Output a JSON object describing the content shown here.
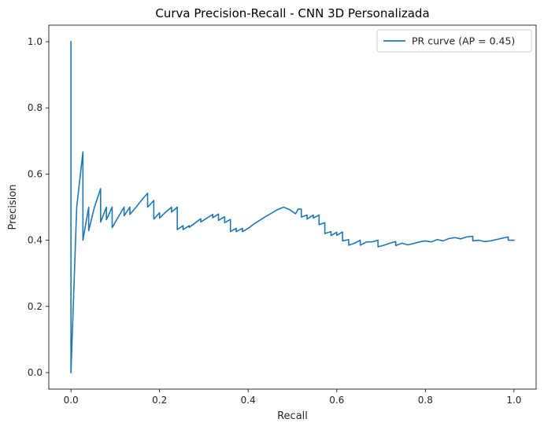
{
  "chart_data": {
    "type": "line",
    "title": "Curva Precision-Recall - CNN 3D Personalizada",
    "xlabel": "Recall",
    "ylabel": "Precision",
    "xlim": [
      -0.05,
      1.05
    ],
    "ylim": [
      -0.05,
      1.05
    ],
    "xticks": [
      0.0,
      0.2,
      0.4,
      0.6,
      0.8,
      1.0
    ],
    "xtick_labels": [
      "0.0",
      "0.2",
      "0.4",
      "0.6",
      "0.8",
      "1.0"
    ],
    "yticks": [
      0.0,
      0.2,
      0.4,
      0.6,
      0.8,
      1.0
    ],
    "ytick_labels": [
      "0.0",
      "0.2",
      "0.4",
      "0.6",
      "0.8",
      "1.0"
    ],
    "grid": false,
    "legend_position": "top-right",
    "series": [
      {
        "name": "PR curve (AP = 0.45)",
        "color": "#1f77b4",
        "x": [
          0.0,
          0.0,
          0.0,
          0.013,
          0.027,
          0.027,
          0.04,
          0.04,
          0.053,
          0.067,
          0.067,
          0.08,
          0.08,
          0.093,
          0.093,
          0.107,
          0.12,
          0.12,
          0.133,
          0.133,
          0.147,
          0.16,
          0.173,
          0.173,
          0.187,
          0.187,
          0.2,
          0.2,
          0.213,
          0.227,
          0.227,
          0.24,
          0.24,
          0.253,
          0.253,
          0.267,
          0.267,
          0.28,
          0.293,
          0.293,
          0.307,
          0.32,
          0.32,
          0.333,
          0.333,
          0.347,
          0.347,
          0.36,
          0.36,
          0.373,
          0.373,
          0.387,
          0.387,
          0.4,
          0.413,
          0.427,
          0.44,
          0.453,
          0.467,
          0.48,
          0.493,
          0.507,
          0.513,
          0.52,
          0.52,
          0.533,
          0.533,
          0.547,
          0.547,
          0.56,
          0.56,
          0.573,
          0.573,
          0.587,
          0.587,
          0.6,
          0.6,
          0.613,
          0.613,
          0.627,
          0.627,
          0.64,
          0.653,
          0.653,
          0.667,
          0.68,
          0.693,
          0.693,
          0.707,
          0.72,
          0.733,
          0.733,
          0.747,
          0.76,
          0.773,
          0.787,
          0.8,
          0.813,
          0.827,
          0.84,
          0.853,
          0.867,
          0.88,
          0.893,
          0.907,
          0.907,
          0.92,
          0.933,
          0.947,
          0.96,
          0.973,
          0.987,
          0.987,
          1.0
        ],
        "y": [
          1.0,
          0.0,
          0.0,
          0.5,
          0.667,
          0.4,
          0.5,
          0.429,
          0.5,
          0.556,
          0.455,
          0.5,
          0.462,
          0.5,
          0.438,
          0.471,
          0.5,
          0.474,
          0.5,
          0.478,
          0.5,
          0.522,
          0.542,
          0.5,
          0.52,
          0.464,
          0.483,
          0.467,
          0.484,
          0.5,
          0.485,
          0.5,
          0.432,
          0.444,
          0.432,
          0.444,
          0.439,
          0.452,
          0.465,
          0.455,
          0.467,
          0.478,
          0.468,
          0.479,
          0.46,
          0.471,
          0.453,
          0.463,
          0.426,
          0.436,
          0.426,
          0.436,
          0.426,
          0.436,
          0.449,
          0.461,
          0.472,
          0.482,
          0.493,
          0.5,
          0.493,
          0.48,
          0.494,
          0.494,
          0.47,
          0.476,
          0.464,
          0.476,
          0.467,
          0.476,
          0.447,
          0.453,
          0.42,
          0.426,
          0.414,
          0.424,
          0.415,
          0.425,
          0.398,
          0.402,
          0.385,
          0.391,
          0.4,
          0.385,
          0.395,
          0.395,
          0.4,
          0.38,
          0.385,
          0.391,
          0.396,
          0.384,
          0.391,
          0.386,
          0.39,
          0.395,
          0.398,
          0.395,
          0.402,
          0.398,
          0.405,
          0.408,
          0.404,
          0.41,
          0.412,
          0.398,
          0.4,
          0.396,
          0.398,
          0.402,
          0.406,
          0.41,
          0.4,
          0.4
        ]
      }
    ]
  }
}
